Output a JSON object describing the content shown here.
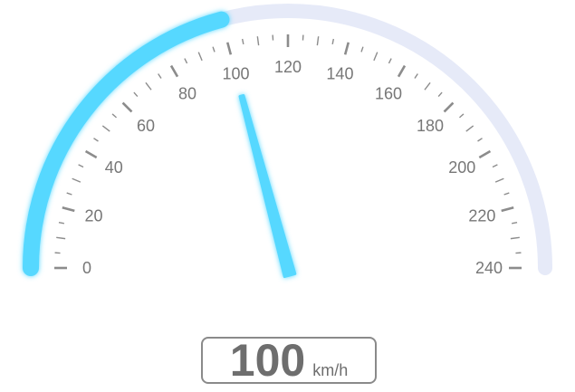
{
  "chart_data": {
    "type": "gauge",
    "min": 0,
    "max": 240,
    "value": 100,
    "unit": "km/h",
    "tick_labels": [
      "0",
      "20",
      "40",
      "60",
      "80",
      "100",
      "120",
      "140",
      "160",
      "180",
      "200",
      "220",
      "240"
    ],
    "major_step": 20,
    "minor_step": 10
  },
  "colors": {
    "progress": "#57d8ff",
    "track": "#e6eaf8",
    "ticks": "#8c8c8c",
    "labels": "#777777",
    "readout": "#6e6e6e"
  },
  "icons": {
    "needle": "gauge-needle-icon"
  }
}
